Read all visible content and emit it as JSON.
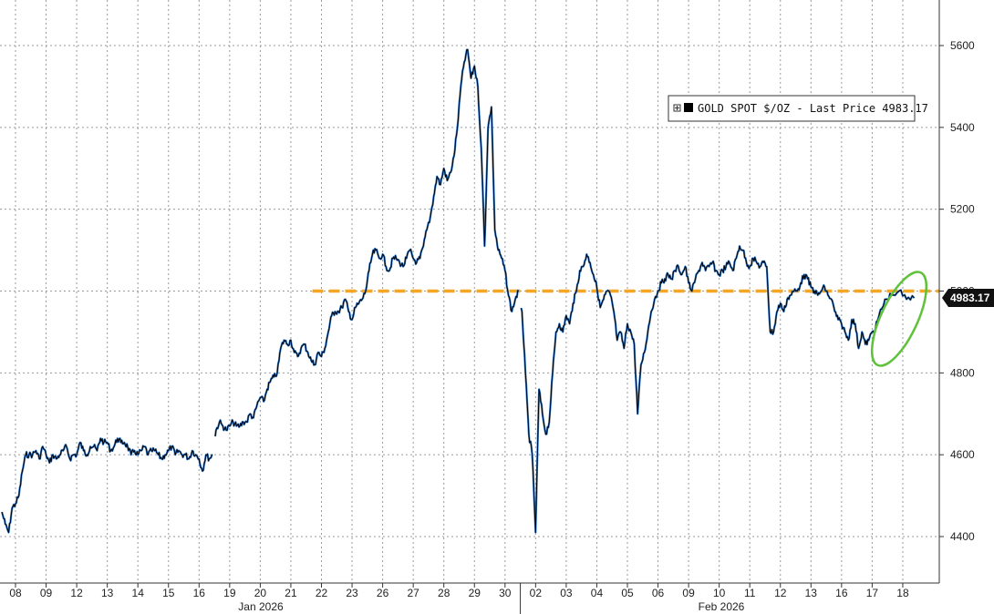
{
  "chart_data": {
    "type": "line",
    "legend": {
      "label": "GOLD SPOT $/OZ - Last Price 4983.17",
      "placement": "top-right",
      "swatch_color": "#000000"
    },
    "last_price_label": "4983.17",
    "ylim": [
      4300,
      5700
    ],
    "y_ticks": [
      4400,
      4600,
      4800,
      5000,
      5200,
      5400,
      5600
    ],
    "grid": true,
    "x_tick_labels": [
      "08",
      "09",
      "12",
      "13",
      "14",
      "15",
      "16",
      "19",
      "20",
      "21",
      "22",
      "23",
      "26",
      "27",
      "28",
      "29",
      "30",
      "02",
      "03",
      "04",
      "05",
      "06",
      "09",
      "10",
      "11",
      "12",
      "13",
      "16",
      "17",
      "18"
    ],
    "month_labels": [
      "Jan 2026",
      "Feb 2026"
    ],
    "reference_line": {
      "value": 5000,
      "color": "#f5a623",
      "style": "dashed",
      "start_index": 10
    },
    "annotation": {
      "type": "ellipse",
      "color": "#5fc23a"
    },
    "series": [
      {
        "color": "#000000",
        "highlight_color": "#2f7fd8",
        "values": [
          [
            4460,
            4430,
            4410,
            4470,
            4480,
            4500,
            4560,
            4600,
            4600
          ],
          [
            4600,
            4610,
            4590,
            4620,
            4600,
            4580,
            4600,
            4590,
            4600
          ],
          [
            4610,
            4620,
            4590,
            4600,
            4600,
            4630,
            4610,
            4600,
            4620
          ],
          [
            4620,
            4610,
            4640,
            4630,
            4630,
            4610,
            4620,
            4640,
            4630
          ],
          [
            4630,
            4620,
            4600,
            4610,
            4600,
            4610,
            4620,
            4600,
            4610
          ],
          [
            4610,
            4600,
            4590,
            4600,
            4610,
            4620,
            4600,
            4610,
            4600
          ],
          [
            4600,
            4590,
            4610,
            4600,
            4590,
            4560,
            4600,
            4590,
            4600
          ],
          [
            4660,
            4680,
            4670,
            4660,
            4670,
            4680,
            4670,
            4670,
            4680
          ],
          [
            4680,
            4700,
            4690,
            4720,
            4740,
            4730,
            4760,
            4780,
            4790
          ],
          [
            4800,
            4860,
            4880,
            4870,
            4880,
            4850,
            4840,
            4860,
            4870
          ],
          [
            4850,
            4830,
            4820,
            4850,
            4840,
            4860,
            4900,
            4940,
            4950
          ],
          [
            4950,
            4960,
            4980,
            4950,
            4930,
            4960,
            4970,
            4980,
            5000
          ],
          [
            5050,
            5090,
            5100,
            5080,
            5090,
            5060,
            5050,
            5080,
            5080
          ],
          [
            5070,
            5060,
            5080,
            5100,
            5080,
            5070,
            5080,
            5110,
            5150
          ],
          [
            5180,
            5230,
            5280,
            5260,
            5300,
            5270,
            5290,
            5330,
            5400
          ],
          [
            5500,
            5560,
            5590,
            5520,
            5550,
            5500,
            5350,
            5110,
            5400
          ],
          [
            5450,
            5150,
            5100,
            5080,
            5050,
            4990,
            4950,
            4980,
            5000
          ],
          [
            4950,
            4800,
            4650,
            4600,
            4410,
            4760,
            4700,
            4650,
            4680
          ],
          [
            4800,
            4900,
            4920,
            4900,
            4940,
            4920,
            4970,
            5000,
            5050
          ],
          [
            5060,
            5090,
            5070,
            5040,
            5010,
            4960,
            4980,
            5000,
            4990
          ],
          [
            4950,
            4880,
            4900,
            4860,
            4920,
            4900,
            4870,
            4700,
            4820
          ],
          [
            4850,
            4900,
            4950,
            4980,
            5000,
            5020,
            5030,
            5040,
            5030
          ],
          [
            5050,
            5060,
            5040,
            5060,
            5020,
            5000,
            5030,
            5050,
            5070
          ],
          [
            5050,
            5060,
            5070,
            5050,
            5040,
            5050,
            5060,
            5070,
            5050
          ],
          [
            5080,
            5110,
            5100,
            5070,
            5060,
            5080,
            5070,
            5060,
            5070
          ],
          [
            5060,
            4900,
            4900,
            4950,
            4970,
            4950,
            4980,
            4990,
            5000
          ],
          [
            5000,
            5020,
            5040,
            5030,
            5010,
            5000,
            4990,
            5000,
            5010
          ],
          [
            4990,
            4980,
            4950,
            4930,
            4920,
            4900,
            4880,
            4930,
            4920
          ],
          [
            4860,
            4900,
            4870,
            4880,
            4900,
            4910,
            4940,
            4960,
            4980
          ],
          [
            4990,
            5000,
            4980,
            4983.17
          ]
        ]
      }
    ]
  }
}
